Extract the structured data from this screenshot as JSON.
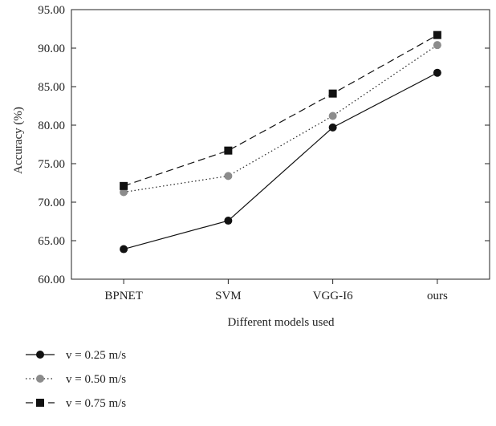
{
  "chart_data": {
    "type": "line",
    "title": "",
    "xlabel": "Different models used",
    "ylabel": "Accuracy (%)",
    "categories": [
      "BPNET",
      "SVM",
      "VGG-I6",
      "ours"
    ],
    "ylim": [
      60,
      95
    ],
    "yticks": [
      "60.00",
      "65.00",
      "70.00",
      "75.00",
      "80.00",
      "85.00",
      "90.00",
      "95.00"
    ],
    "grid": false,
    "legend_position": "bottom-left",
    "series": [
      {
        "name": "v = 0.25 m/s",
        "values": [
          63.9,
          67.6,
          79.7,
          86.8
        ],
        "marker": "circle",
        "line_style": "solid",
        "color": "#111111"
      },
      {
        "name": "v = 0.50 m/s",
        "values": [
          71.3,
          73.4,
          81.2,
          90.4
        ],
        "marker": "circle",
        "line_style": "dotted",
        "color": "#8c8c8c"
      },
      {
        "name": "v = 0.75 m/s",
        "values": [
          72.1,
          76.7,
          84.1,
          91.7
        ],
        "marker": "square",
        "line_style": "dashed",
        "color": "#111111"
      }
    ]
  }
}
